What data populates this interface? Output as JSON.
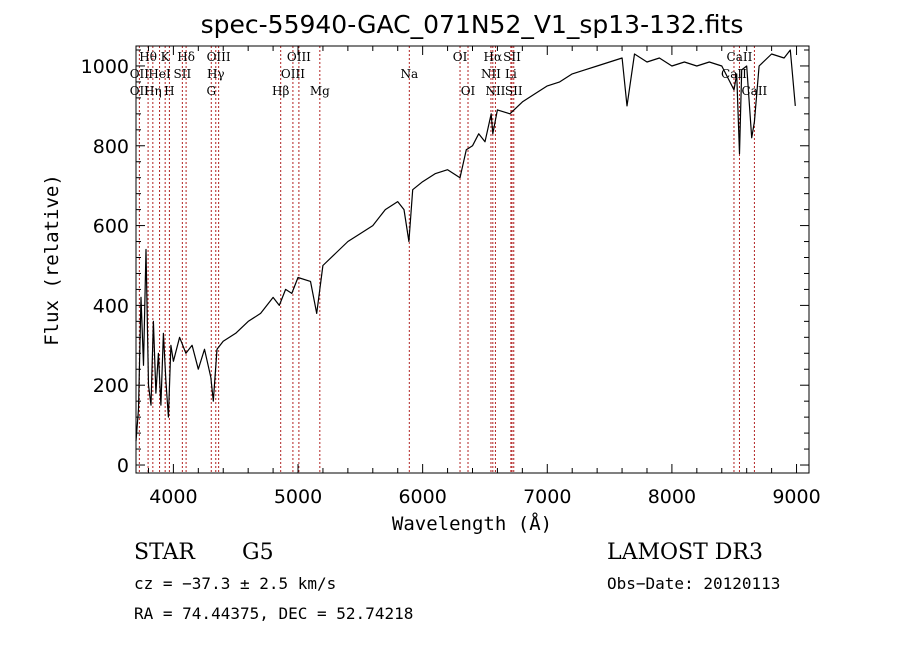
{
  "chart_data": {
    "type": "line",
    "title": "spec-55940-GAC_071N52_V1_sp13-132.fits",
    "xlabel": "Wavelength (Å)",
    "ylabel": "Flux (relative)",
    "xlim": [
      3700,
      9100
    ],
    "ylim": [
      -20,
      1050
    ],
    "x_ticks": [
      4000,
      5000,
      6000,
      7000,
      8000,
      9000
    ],
    "y_ticks": [
      0,
      200,
      400,
      600,
      800,
      1000
    ],
    "grid": false,
    "line_color": "#000000",
    "marker_color": "#b22222",
    "series": [
      {
        "name": "flux",
        "points": [
          [
            3700,
            60
          ],
          [
            3720,
            140
          ],
          [
            3740,
            420
          ],
          [
            3760,
            250
          ],
          [
            3780,
            540
          ],
          [
            3800,
            200
          ],
          [
            3820,
            150
          ],
          [
            3840,
            360
          ],
          [
            3860,
            180
          ],
          [
            3880,
            280
          ],
          [
            3900,
            150
          ],
          [
            3920,
            330
          ],
          [
            3940,
            210
          ],
          [
            3960,
            120
          ],
          [
            3980,
            300
          ],
          [
            4000,
            260
          ],
          [
            4050,
            320
          ],
          [
            4100,
            280
          ],
          [
            4150,
            300
          ],
          [
            4200,
            240
          ],
          [
            4250,
            290
          ],
          [
            4300,
            220
          ],
          [
            4320,
            160
          ],
          [
            4350,
            290
          ],
          [
            4400,
            310
          ],
          [
            4500,
            330
          ],
          [
            4600,
            360
          ],
          [
            4700,
            380
          ],
          [
            4800,
            420
          ],
          [
            4850,
            400
          ],
          [
            4900,
            440
          ],
          [
            4950,
            430
          ],
          [
            5000,
            470
          ],
          [
            5100,
            460
          ],
          [
            5150,
            380
          ],
          [
            5200,
            500
          ],
          [
            5300,
            530
          ],
          [
            5400,
            560
          ],
          [
            5500,
            580
          ],
          [
            5600,
            600
          ],
          [
            5700,
            640
          ],
          [
            5800,
            660
          ],
          [
            5850,
            640
          ],
          [
            5890,
            560
          ],
          [
            5920,
            690
          ],
          [
            6000,
            710
          ],
          [
            6100,
            730
          ],
          [
            6200,
            740
          ],
          [
            6300,
            720
          ],
          [
            6350,
            790
          ],
          [
            6400,
            800
          ],
          [
            6450,
            830
          ],
          [
            6500,
            810
          ],
          [
            6550,
            880
          ],
          [
            6563,
            830
          ],
          [
            6600,
            890
          ],
          [
            6700,
            880
          ],
          [
            6800,
            910
          ],
          [
            6900,
            930
          ],
          [
            7000,
            950
          ],
          [
            7100,
            960
          ],
          [
            7200,
            980
          ],
          [
            7300,
            990
          ],
          [
            7400,
            1000
          ],
          [
            7500,
            1010
          ],
          [
            7600,
            1020
          ],
          [
            7640,
            900
          ],
          [
            7700,
            1030
          ],
          [
            7800,
            1010
          ],
          [
            7900,
            1020
          ],
          [
            8000,
            1000
          ],
          [
            8100,
            1010
          ],
          [
            8200,
            1000
          ],
          [
            8300,
            1010
          ],
          [
            8400,
            1000
          ],
          [
            8498,
            940
          ],
          [
            8520,
            980
          ],
          [
            8542,
            780
          ],
          [
            8560,
            990
          ],
          [
            8600,
            1000
          ],
          [
            8640,
            820
          ],
          [
            8662,
            860
          ],
          [
            8700,
            1000
          ],
          [
            8800,
            1030
          ],
          [
            8900,
            1020
          ],
          [
            8950,
            1040
          ],
          [
            8990,
            900
          ]
        ]
      }
    ],
    "line_labels": [
      {
        "text": "Hθ",
        "x": 3797,
        "row": 0
      },
      {
        "text": "OII",
        "x": 3727,
        "row": 1
      },
      {
        "text": "OII",
        "x": 3727,
        "row": 2
      },
      {
        "text": "K",
        "x": 3934,
        "row": 0
      },
      {
        "text": "HeI",
        "x": 3889,
        "row": 1
      },
      {
        "text": "Hη",
        "x": 3835,
        "row": 2
      },
      {
        "text": "H",
        "x": 3968,
        "row": 2
      },
      {
        "text": "SII",
        "x": 4072,
        "row": 1
      },
      {
        "text": "Hδ",
        "x": 4102,
        "row": 0
      },
      {
        "text": "OIII",
        "x": 4363,
        "row": 0
      },
      {
        "text": "Hγ",
        "x": 4340,
        "row": 1
      },
      {
        "text": "G",
        "x": 4304,
        "row": 2
      },
      {
        "text": "Hβ",
        "x": 4861,
        "row": 2
      },
      {
        "text": "OIII",
        "x": 5007,
        "row": 0
      },
      {
        "text": "OIII",
        "x": 4959,
        "row": 1
      },
      {
        "text": "Mg",
        "x": 5175,
        "row": 2
      },
      {
        "text": "Na",
        "x": 5893,
        "row": 1
      },
      {
        "text": "OI",
        "x": 6300,
        "row": 0
      },
      {
        "text": "OI",
        "x": 6364,
        "row": 2
      },
      {
        "text": "Hα",
        "x": 6563,
        "row": 0
      },
      {
        "text": "NII",
        "x": 6548,
        "row": 1
      },
      {
        "text": "NII",
        "x": 6584,
        "row": 2
      },
      {
        "text": "SII",
        "x": 6717,
        "row": 0
      },
      {
        "text": "Li",
        "x": 6708,
        "row": 1
      },
      {
        "text": "SII",
        "x": 6731,
        "row": 2
      },
      {
        "text": "CaII",
        "x": 8542,
        "row": 0
      },
      {
        "text": "CaII",
        "x": 8498,
        "row": 1
      },
      {
        "text": "CaII",
        "x": 8662,
        "row": 2
      }
    ],
    "marker_lines": [
      3727,
      3797,
      3835,
      3889,
      3934,
      3968,
      4072,
      4102,
      4304,
      4340,
      4363,
      4861,
      4959,
      5007,
      5175,
      5893,
      6300,
      6364,
      6548,
      6563,
      6584,
      6708,
      6717,
      6731,
      8498,
      8542,
      8662
    ]
  },
  "info": {
    "object_class": "STAR",
    "subclass": "G5",
    "survey": "LAMOST DR3",
    "cz": "cz = −37.3 ± 2.5 km/s",
    "obs_date": "Obs−Date: 20120113",
    "coords": "RA =  74.44375, DEC =  52.74218"
  }
}
